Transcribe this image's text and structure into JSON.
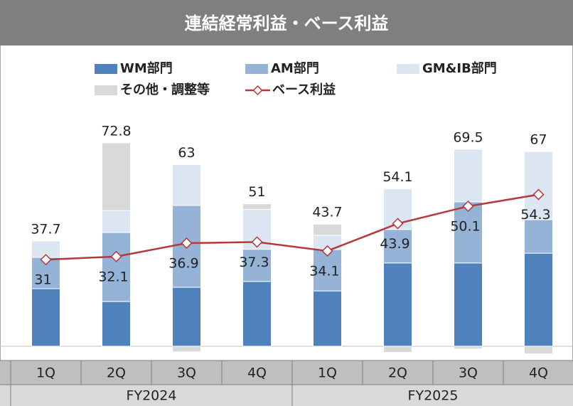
{
  "chart_data": {
    "type": "bar",
    "title": "連結経常利益・ベース利益",
    "categories": [
      "1Q",
      "2Q",
      "3Q",
      "4Q",
      "1Q",
      "2Q",
      "3Q",
      "4Q"
    ],
    "groups": [
      "FY2024",
      "FY2025"
    ],
    "series": [
      {
        "name": "WM部門",
        "color": "#4f81bd",
        "values": [
          20.6,
          16.0,
          21.1,
          23.2,
          19.8,
          29.8,
          29.8,
          33.3
        ]
      },
      {
        "name": "AM部門",
        "color": "#95b3d7",
        "values": [
          11.2,
          24.7,
          29.3,
          11.5,
          14.8,
          12.0,
          21.9,
          12.0
        ]
      },
      {
        "name": "GM&IB部門",
        "color": "#dce6f2",
        "values": [
          5.9,
          7.9,
          14.6,
          14.3,
          5.1,
          14.5,
          18.8,
          24.4
        ]
      },
      {
        "name": "その他・調整等",
        "color": "#d9d9d9",
        "values": [
          0,
          24.2,
          -2.0,
          2.0,
          4.0,
          -2.2,
          -1.0,
          -2.7
        ]
      }
    ],
    "totals": [
      37.7,
      72.8,
      63.0,
      51.0,
      43.7,
      54.1,
      69.5,
      67.0
    ],
    "line": {
      "name": "ベース利益",
      "color": "#b5383a",
      "values": [
        31.0,
        32.1,
        36.9,
        37.3,
        34.1,
        43.9,
        50.1,
        54.3
      ]
    },
    "ylim": [
      -5,
      80
    ]
  }
}
